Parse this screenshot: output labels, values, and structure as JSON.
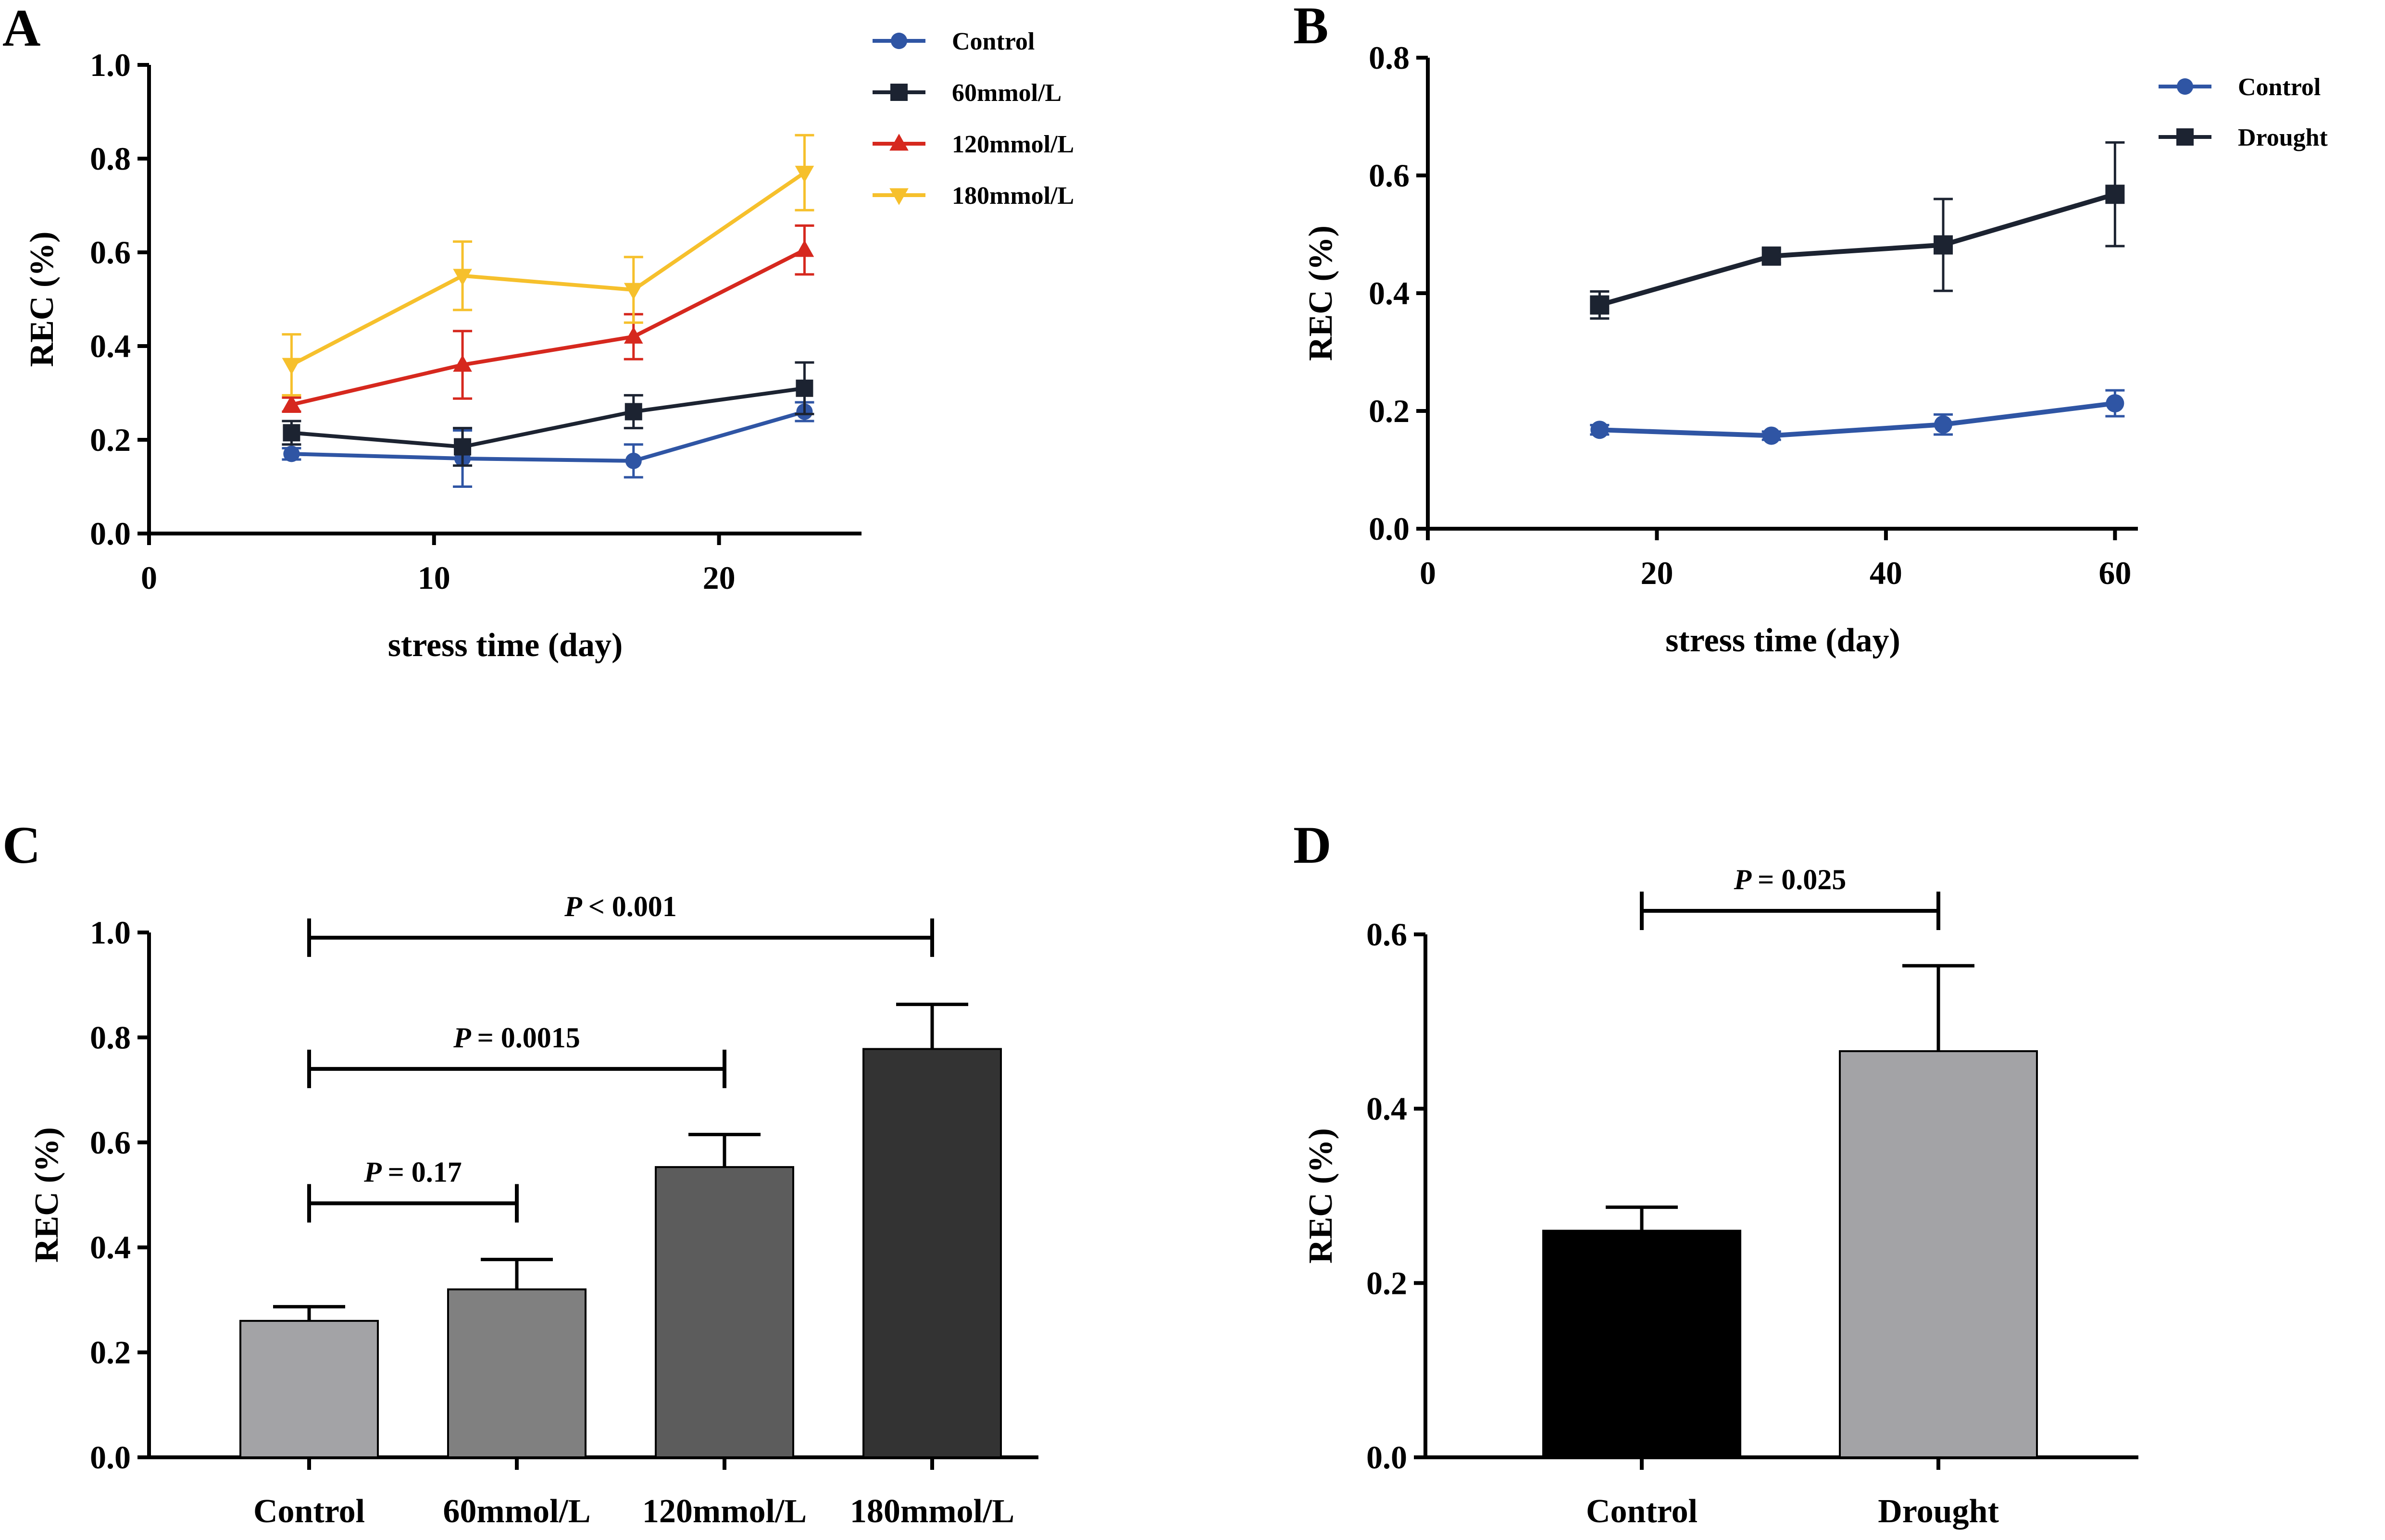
{
  "chart_data": [
    {
      "panel": "A",
      "type": "line",
      "xlabel": "stress time (day)",
      "ylabel": "REC (%)",
      "xlim": [
        0,
        25
      ],
      "ylim": [
        0,
        1.0
      ],
      "xticks": [
        0,
        10,
        20
      ],
      "yticks": [
        0.0,
        0.2,
        0.4,
        0.6,
        0.8,
        1.0
      ],
      "ytick_labels": [
        "0.0",
        "0.2",
        "0.4",
        "0.6",
        "0.8",
        "1.0"
      ],
      "legend_position": "top-right",
      "series": [
        {
          "name": "Control",
          "color": "#2f55a4",
          "marker": "circle",
          "x": [
            5,
            11,
            17,
            23
          ],
          "values": [
            0.17,
            0.16,
            0.155,
            0.26
          ],
          "errors": [
            0.012,
            0.06,
            0.035,
            0.02
          ]
        },
        {
          "name": "60mmol/L",
          "color": "#1c2331",
          "marker": "square",
          "x": [
            5,
            11,
            17,
            23
          ],
          "values": [
            0.215,
            0.185,
            0.26,
            0.31
          ],
          "errors": [
            0.025,
            0.04,
            0.035,
            0.055
          ]
        },
        {
          "name": "120mmol/L",
          "color": "#d6281e",
          "marker": "triangle-up",
          "x": [
            5,
            11,
            17,
            23
          ],
          "values": [
            0.275,
            0.36,
            0.42,
            0.605
          ],
          "errors": [
            0.015,
            0.072,
            0.048,
            0.052
          ]
        },
        {
          "name": "180mmol/L",
          "color": "#f6c02c",
          "marker": "triangle-down",
          "x": [
            5,
            11,
            17,
            23
          ],
          "values": [
            0.36,
            0.55,
            0.52,
            0.77
          ],
          "errors": [
            0.065,
            0.073,
            0.07,
            0.08
          ]
        }
      ]
    },
    {
      "panel": "B",
      "type": "line",
      "xlabel": "stress time (day)",
      "ylabel": "REC (%)",
      "xlim": [
        0,
        62
      ],
      "ylim": [
        0,
        0.8
      ],
      "xticks": [
        0,
        20,
        40,
        60
      ],
      "yticks": [
        0.0,
        0.2,
        0.4,
        0.6,
        0.8
      ],
      "ytick_labels": [
        "0.0",
        "0.2",
        "0.4",
        "0.6",
        "0.8"
      ],
      "legend_position": "top-right",
      "series": [
        {
          "name": "Control",
          "color": "#2f55a4",
          "marker": "circle",
          "x": [
            15,
            30,
            45,
            60
          ],
          "values": [
            0.168,
            0.158,
            0.177,
            0.213
          ],
          "errors": [
            0.008,
            0.007,
            0.017,
            0.022
          ]
        },
        {
          "name": "Drought",
          "color": "#1c2331",
          "marker": "square",
          "x": [
            15,
            30,
            45,
            60
          ],
          "values": [
            0.38,
            0.463,
            0.482,
            0.568
          ],
          "errors": [
            0.023,
            0.012,
            0.078,
            0.088
          ]
        }
      ]
    },
    {
      "panel": "C",
      "type": "bar",
      "ylabel": "REC (%)",
      "ylim": [
        0,
        1.0
      ],
      "yticks": [
        0.0,
        0.2,
        0.4,
        0.6,
        0.8,
        1.0
      ],
      "ytick_labels": [
        "0.0",
        "0.2",
        "0.4",
        "0.6",
        "0.8",
        "1.0"
      ],
      "categories": [
        "Control",
        "60mmol/L",
        "120mmol/L",
        "180mmol/L"
      ],
      "values": [
        0.26,
        0.32,
        0.553,
        0.778
      ],
      "errors": [
        0.027,
        0.057,
        0.062,
        0.085
      ],
      "colors": [
        "#a3a3a6",
        "#808080",
        "#5c5c5c",
        "#333333"
      ],
      "comparisons": [
        {
          "from": 0,
          "to": 1,
          "y": 0.484,
          "label": "= 0.17"
        },
        {
          "from": 0,
          "to": 2,
          "y": 0.74,
          "label": "= 0.0015"
        },
        {
          "from": 0,
          "to": 3,
          "y": 0.99,
          "label": "< 0.001"
        }
      ],
      "p_symbol": "P"
    },
    {
      "panel": "D",
      "type": "bar",
      "ylabel": "REC (%)",
      "ylim": [
        0,
        0.6
      ],
      "yticks": [
        0.0,
        0.2,
        0.4,
        0.6
      ],
      "ytick_labels": [
        "0.0",
        "0.2",
        "0.4",
        "0.6"
      ],
      "categories": [
        "Control",
        "Drought"
      ],
      "values": [
        0.26,
        0.466
      ],
      "errors": [
        0.027,
        0.098
      ],
      "colors": [
        "#000000",
        "#a3a3a6"
      ],
      "comparisons": [
        {
          "from": 0,
          "to": 1,
          "y": 0.627,
          "label": "= 0.025"
        }
      ],
      "p_symbol": "P"
    }
  ]
}
